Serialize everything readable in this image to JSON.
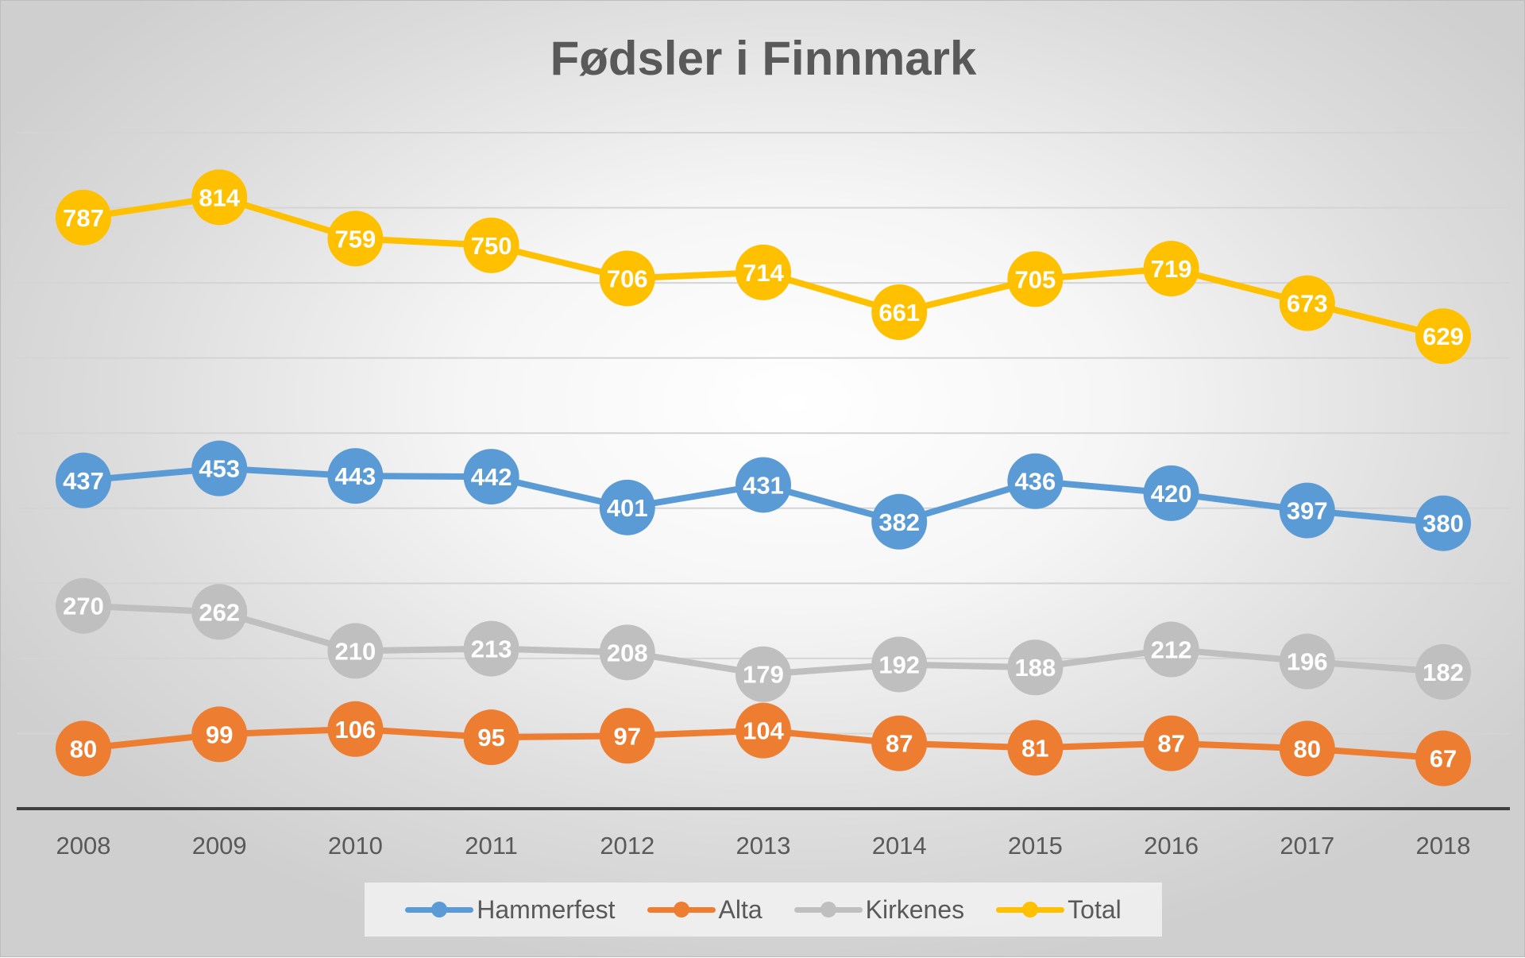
{
  "chart_data": {
    "type": "line",
    "title": "Fødsler i Finnmark",
    "xlabel": "",
    "ylabel": "",
    "ylim": [
      0,
      900
    ],
    "grid": true,
    "legend_position": "bottom",
    "categories": [
      "2008",
      "2009",
      "2010",
      "2011",
      "2012",
      "2013",
      "2014",
      "2015",
      "2016",
      "2017",
      "2018"
    ],
    "series": [
      {
        "name": "Hammerfest",
        "color": "#5B9BD5",
        "values": [
          437,
          453,
          443,
          442,
          401,
          431,
          382,
          436,
          420,
          397,
          380
        ]
      },
      {
        "name": "Alta",
        "color": "#ED7D31",
        "values": [
          80,
          99,
          106,
          95,
          97,
          104,
          87,
          81,
          87,
          80,
          67
        ]
      },
      {
        "name": "Kirkenes",
        "color": "#BFBFBF",
        "values": [
          270,
          262,
          210,
          213,
          208,
          179,
          192,
          188,
          212,
          196,
          182
        ]
      },
      {
        "name": "Total",
        "color": "#FFC000",
        "values": [
          787,
          814,
          759,
          750,
          706,
          714,
          661,
          705,
          719,
          673,
          629
        ]
      }
    ]
  }
}
